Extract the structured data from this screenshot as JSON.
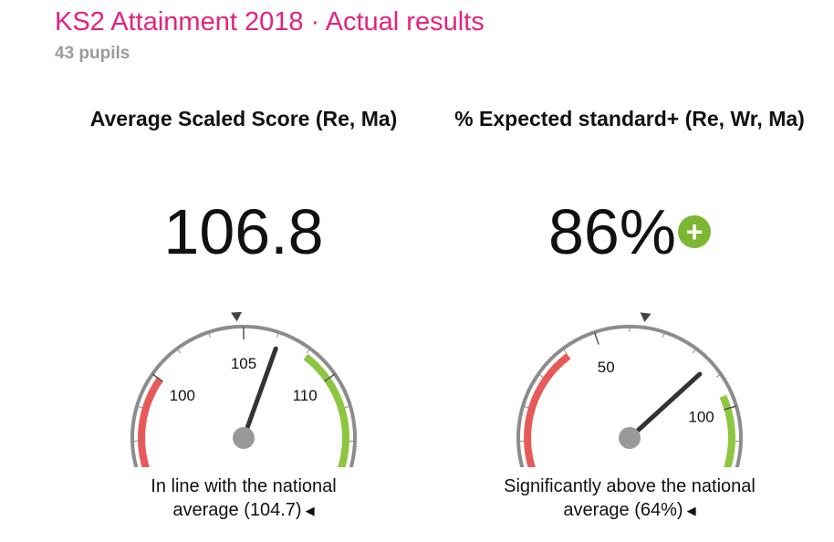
{
  "header": {
    "title": "KS2 Attainment 2018 · Actual results",
    "subtitle": "43 pupils"
  },
  "metrics": [
    {
      "title": "Average Scaled Score (Re, Ma)",
      "value": "106.8",
      "badge": "",
      "gauge": {
        "min": 95,
        "max": 115,
        "value": 106.8,
        "national": 104.7,
        "tick_labels": [
          "100",
          "105",
          "110"
        ],
        "tick_values": [
          100,
          105,
          110
        ],
        "red_band": [
          95,
          100
        ],
        "green_band": [
          108.4,
          115
        ],
        "colors": {
          "red": "#e85959",
          "green": "#8dc63f",
          "track": "#8c8c8c",
          "needle": "#333333",
          "hub": "#999999"
        }
      },
      "status_line1": "In line with the national",
      "status_line2": "average (104.7)",
      "status_icon": "left-arrow-icon"
    },
    {
      "title": "% Expected standard+ (Re, Wr, Ma)",
      "value": "86%",
      "badge": "+",
      "badge_icon": "plus-circle-icon",
      "gauge": {
        "min": 0,
        "max": 120,
        "value": 86,
        "national": 64,
        "tick_labels": [
          "50",
          "100"
        ],
        "tick_values": [
          50,
          100
        ],
        "red_band": [
          0,
          40
        ],
        "green_band": [
          96,
          120
        ],
        "colors": {
          "red": "#e85959",
          "green": "#8dc63f",
          "track": "#8c8c8c",
          "needle": "#333333",
          "hub": "#999999"
        }
      },
      "status_line1": "Significantly above the national",
      "status_line2": "average (64%)",
      "status_icon": "left-arrow-icon"
    }
  ]
}
